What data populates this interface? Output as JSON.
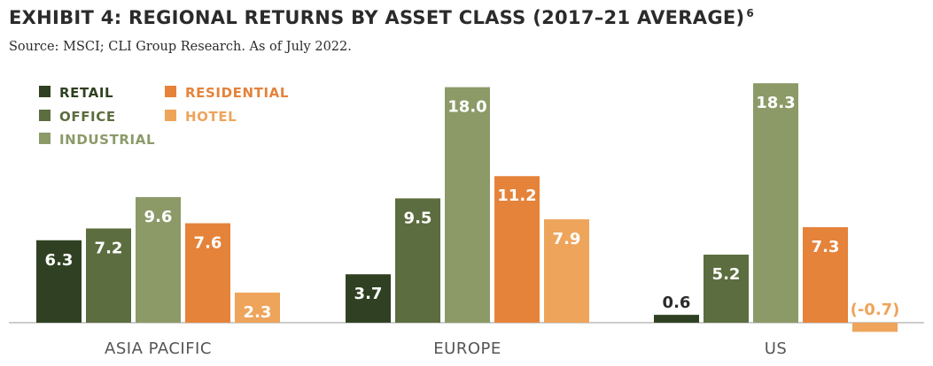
{
  "title": "EXHIBIT 4: REGIONAL RETURNS BY ASSET CLASS (2017–21 AVERAGE)",
  "title_superscript": "6",
  "source": "Source: MSCI; CLI Group Research. As of July 2022.",
  "colors": {
    "retail": "#2f4122",
    "office": "#5c6d3f",
    "industrial": "#8c9a68",
    "residential": "#e5833a",
    "hotel": "#eea45a",
    "value_label_light": "#ffffff",
    "value_label_dark": "#2b2b2b",
    "negative_label": "#eea45a",
    "axis": "#bbbbbb",
    "category_label": "#555555"
  },
  "chart_data": {
    "type": "bar",
    "categories": [
      "ASIA PACIFIC",
      "EUROPE",
      "US"
    ],
    "series": [
      {
        "name": "RETAIL",
        "values": [
          6.3,
          3.7,
          0.6
        ]
      },
      {
        "name": "OFFICE",
        "values": [
          7.2,
          9.5,
          5.2
        ]
      },
      {
        "name": "INDUSTRIAL",
        "values": [
          9.6,
          18.0,
          18.3
        ]
      },
      {
        "name": "RESIDENTIAL",
        "values": [
          7.6,
          11.2,
          7.3
        ]
      },
      {
        "name": "HOTEL",
        "values": [
          2.3,
          7.9,
          -0.7
        ]
      }
    ],
    "value_labels": [
      [
        "6.3",
        "3.7",
        "0.6"
      ],
      [
        "7.2",
        "9.5",
        "5.2"
      ],
      [
        "9.6",
        "18.0",
        "18.3"
      ],
      [
        "7.6",
        "11.2",
        "7.3"
      ],
      [
        "2.3",
        "7.9",
        "(-0.7)"
      ]
    ],
    "legend_position": "top-left",
    "grid": false,
    "ylim": [
      -0.7,
      18.3
    ]
  }
}
